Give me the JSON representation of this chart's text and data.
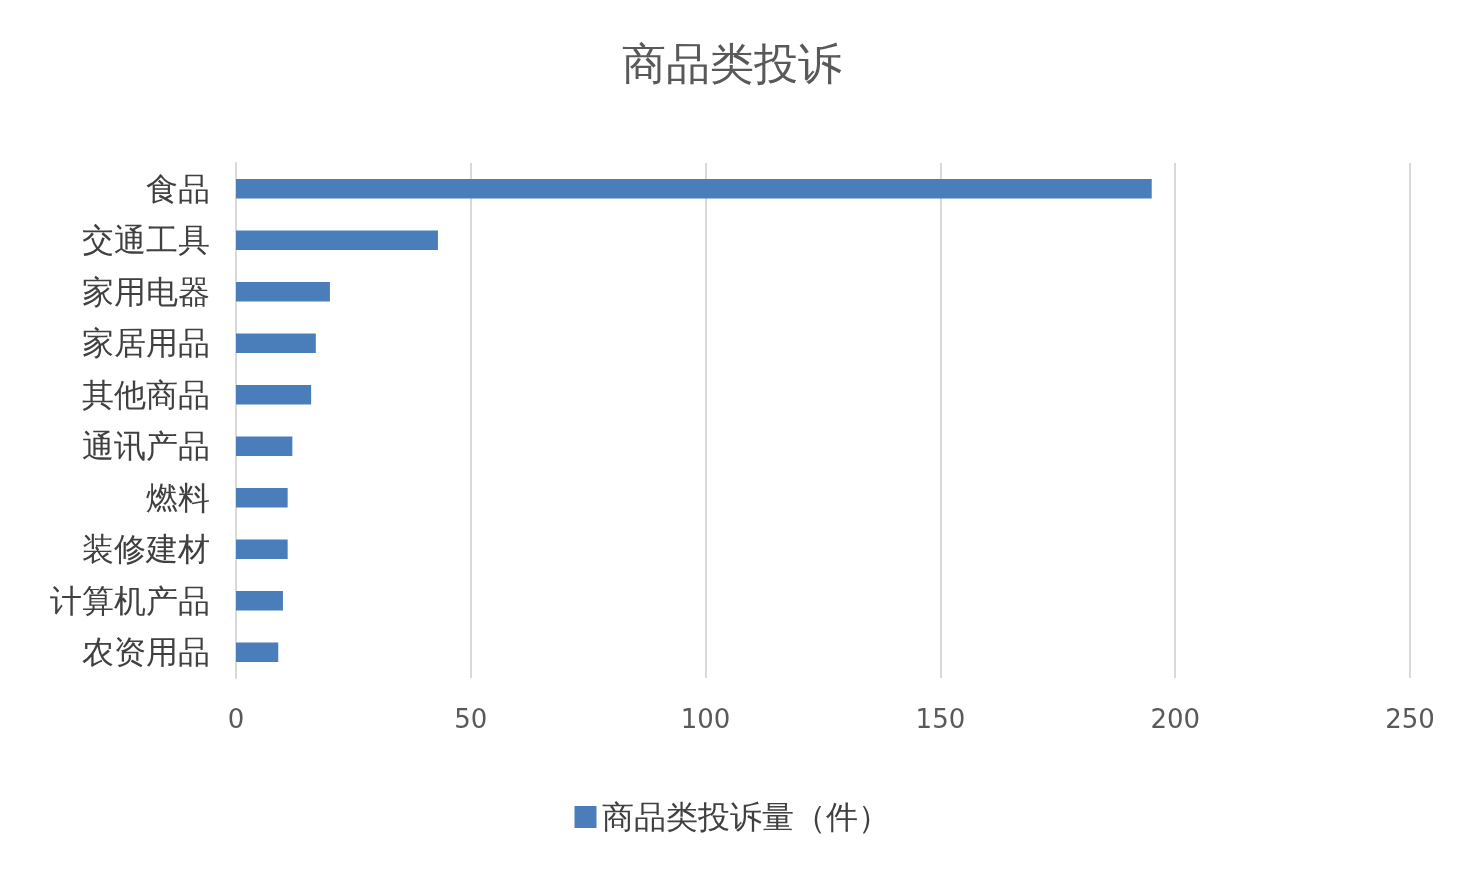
{
  "chart_data": {
    "type": "bar",
    "orientation": "horizontal",
    "title": "商品类投诉",
    "categories": [
      "食品",
      "交通工具",
      "家用电器",
      "家居用品",
      "其他商品",
      "通讯产品",
      "燃料",
      "装修建材",
      "计算机产品",
      "农资用品"
    ],
    "series": [
      {
        "name": "商品类投诉量（件）",
        "color": "#4a7ebb",
        "values": [
          195,
          43,
          20,
          17,
          16,
          12,
          11,
          11,
          10,
          9
        ]
      }
    ],
    "xlim": [
      0,
      250
    ],
    "xticks": [
      0,
      50,
      100,
      150,
      200,
      250
    ],
    "grid": "x",
    "legend": "bottom"
  }
}
